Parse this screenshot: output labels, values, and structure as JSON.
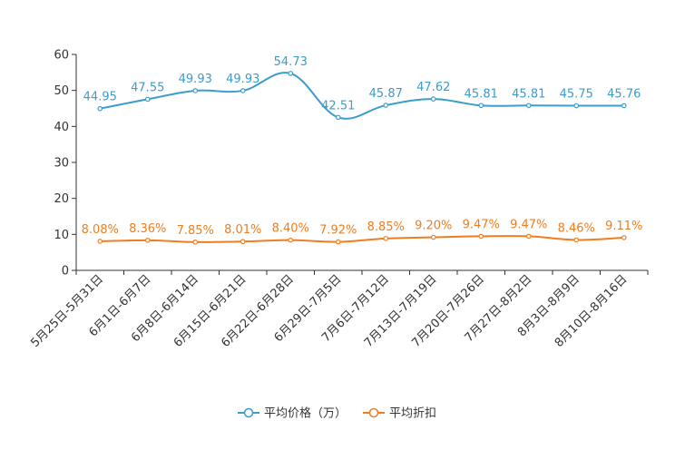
{
  "chart_data": {
    "type": "line",
    "title": "",
    "xlabel": "",
    "ylabel": "",
    "ylim": [
      0,
      60
    ],
    "yticks": [
      "0",
      "10",
      "20",
      "30",
      "40",
      "50",
      "60"
    ],
    "grid": false,
    "legend_position": "bottom-center",
    "categories": [
      "5月25日-5月31日",
      "6月1日-6月7日",
      "6月8日-6月14日",
      "6月15日-6月21日",
      "6月22日-6月28日",
      "6月29日-7月5日",
      "7月6日-7月12日",
      "7月13日-7月19日",
      "7月20日-7月26日",
      "7月27日-8月2日",
      "8月3日-8月9日",
      "8月10日-8月16日"
    ],
    "series": [
      {
        "name": "平均价格（万）",
        "color": "#3c9ccc",
        "values": [
          44.95,
          47.55,
          49.93,
          49.93,
          54.73,
          42.51,
          45.87,
          47.62,
          45.81,
          45.81,
          45.75,
          45.76
        ],
        "labels": [
          "44.95",
          "47.55",
          "49.93",
          "49.93",
          "54.73",
          "42.51",
          "45.87",
          "47.62",
          "45.81",
          "45.81",
          "45.75",
          "45.76"
        ]
      },
      {
        "name": "平均折扣",
        "color": "#f07d1f",
        "values": [
          8.08,
          8.36,
          7.85,
          8.01,
          8.4,
          7.92,
          8.85,
          9.2,
          9.47,
          9.47,
          8.46,
          9.11
        ],
        "labels": [
          "8.08%",
          "8.36%",
          "7.85%",
          "8.01%",
          "8.40%",
          "7.92%",
          "8.85%",
          "9.20%",
          "9.47%",
          "9.47%",
          "8.46%",
          "9.11%"
        ]
      }
    ]
  }
}
